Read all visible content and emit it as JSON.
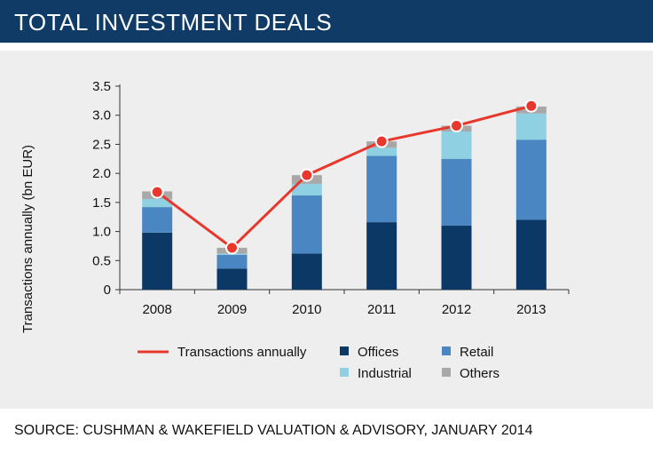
{
  "header": {
    "title": "TOTAL INVESTMENT DEALS"
  },
  "source": "SOURCE: CUSHMAN & WAKEFIELD VALUATION & ADVISORY, JANUARY 2014",
  "chart_data": {
    "type": "bar",
    "stacked": true,
    "title": "",
    "ylabel": "Transactions annually (bn EUR)",
    "xlabel": "",
    "ylim": [
      0,
      3.5
    ],
    "yticks": [
      "0",
      "0.5",
      "1.0",
      "1.5",
      "2.0",
      "2.5",
      "3.0",
      "3.5"
    ],
    "ytick_values": [
      0,
      0.5,
      1.0,
      1.5,
      2.0,
      2.5,
      3.0,
      3.5
    ],
    "categories": [
      "2008",
      "2009",
      "2010",
      "2011",
      "2012",
      "2013"
    ],
    "series": [
      {
        "name": "Offices",
        "color": "#0b3864",
        "values": [
          0.98,
          0.36,
          0.62,
          1.16,
          1.1,
          1.2
        ]
      },
      {
        "name": "Retail",
        "color": "#4a86c1",
        "values": [
          0.44,
          0.24,
          1.0,
          1.14,
          1.15,
          1.38
        ]
      },
      {
        "name": "Industrial",
        "color": "#8fd0e2",
        "values": [
          0.14,
          0.02,
          0.2,
          0.14,
          0.47,
          0.45
        ]
      },
      {
        "name": "Others",
        "color": "#a8a8a8",
        "values": [
          0.13,
          0.1,
          0.15,
          0.11,
          0.1,
          0.12
        ]
      }
    ],
    "line": {
      "name": "Transactions annually",
      "color": "#e8382d",
      "values": [
        1.68,
        0.72,
        1.97,
        2.55,
        2.82,
        3.16
      ]
    },
    "grid": false,
    "legend": "bottom"
  }
}
